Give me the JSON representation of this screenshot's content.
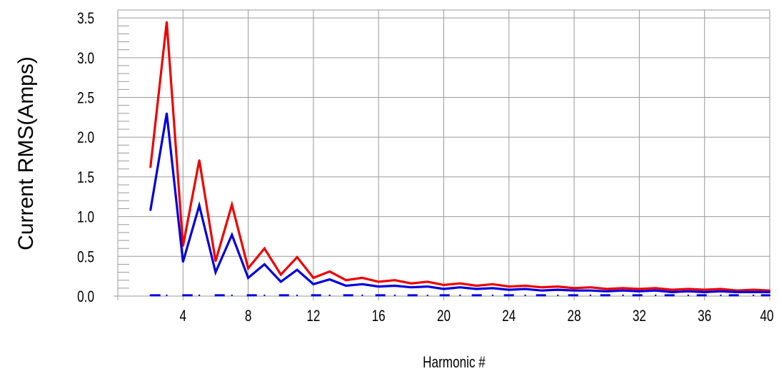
{
  "chart_data": {
    "type": "line",
    "title": "",
    "xlabel": "Harmonic #",
    "ylabel": "Current RMS(Amps)",
    "xlim": [
      0,
      40
    ],
    "ylim": [
      0,
      3.6
    ],
    "xticks": [
      4,
      8,
      12,
      16,
      20,
      24,
      28,
      32,
      36,
      40
    ],
    "xtick_labels": [
      "4",
      "8",
      "12",
      "16",
      "20",
      "24",
      "28",
      "32",
      "36",
      "40"
    ],
    "yticks": [
      0,
      0.5,
      1,
      1.5,
      2,
      2.5,
      3,
      3.5
    ],
    "ytick_labels": [
      "0.0",
      "0.5",
      "1.0",
      "1.5",
      "2.0",
      "2.5",
      "3.0",
      "3.5"
    ],
    "grid": true,
    "legend": "none",
    "colors": {
      "red": "#ee0000",
      "blue": "#0000dd",
      "grid": "#9a9a9a"
    },
    "x": [
      2,
      3,
      4,
      5,
      6,
      7,
      8,
      9,
      10,
      11,
      12,
      13,
      14,
      15,
      16,
      17,
      18,
      19,
      20,
      21,
      22,
      23,
      24,
      25,
      26,
      27,
      28,
      29,
      30,
      31,
      32,
      33,
      34,
      35,
      36,
      37,
      38,
      39,
      40
    ],
    "series": [
      {
        "color": "#ee0000",
        "style": "solid",
        "values": [
          1.62,
          3.45,
          0.63,
          1.71,
          0.44,
          1.15,
          0.35,
          0.6,
          0.27,
          0.49,
          0.23,
          0.31,
          0.2,
          0.23,
          0.18,
          0.2,
          0.16,
          0.18,
          0.14,
          0.16,
          0.13,
          0.15,
          0.12,
          0.13,
          0.11,
          0.12,
          0.1,
          0.11,
          0.09,
          0.1,
          0.09,
          0.1,
          0.08,
          0.09,
          0.08,
          0.09,
          0.07,
          0.08,
          0.07
        ]
      },
      {
        "color": "#0000dd",
        "style": "solid",
        "values": [
          1.08,
          2.3,
          0.43,
          1.14,
          0.3,
          0.77,
          0.23,
          0.4,
          0.18,
          0.33,
          0.15,
          0.21,
          0.13,
          0.15,
          0.12,
          0.13,
          0.11,
          0.12,
          0.09,
          0.11,
          0.09,
          0.1,
          0.08,
          0.09,
          0.07,
          0.08,
          0.07,
          0.07,
          0.06,
          0.07,
          0.06,
          0.07,
          0.05,
          0.06,
          0.05,
          0.06,
          0.05,
          0.05,
          0.05
        ]
      },
      {
        "color": "#0000dd",
        "style": "dashed",
        "values": [
          0.01,
          0.01,
          0.01,
          0.01,
          0.01,
          0.01,
          0.01,
          0.01,
          0.01,
          0.01,
          0.01,
          0.01,
          0.01,
          0.01,
          0.01,
          0.01,
          0.01,
          0.01,
          0.01,
          0.01,
          0.01,
          0.01,
          0.01,
          0.01,
          0.01,
          0.01,
          0.01,
          0.01,
          0.01,
          0.01,
          0.01,
          0.01,
          0.01,
          0.01,
          0.01,
          0.01,
          0.01,
          0.01,
          0.01
        ]
      }
    ]
  }
}
